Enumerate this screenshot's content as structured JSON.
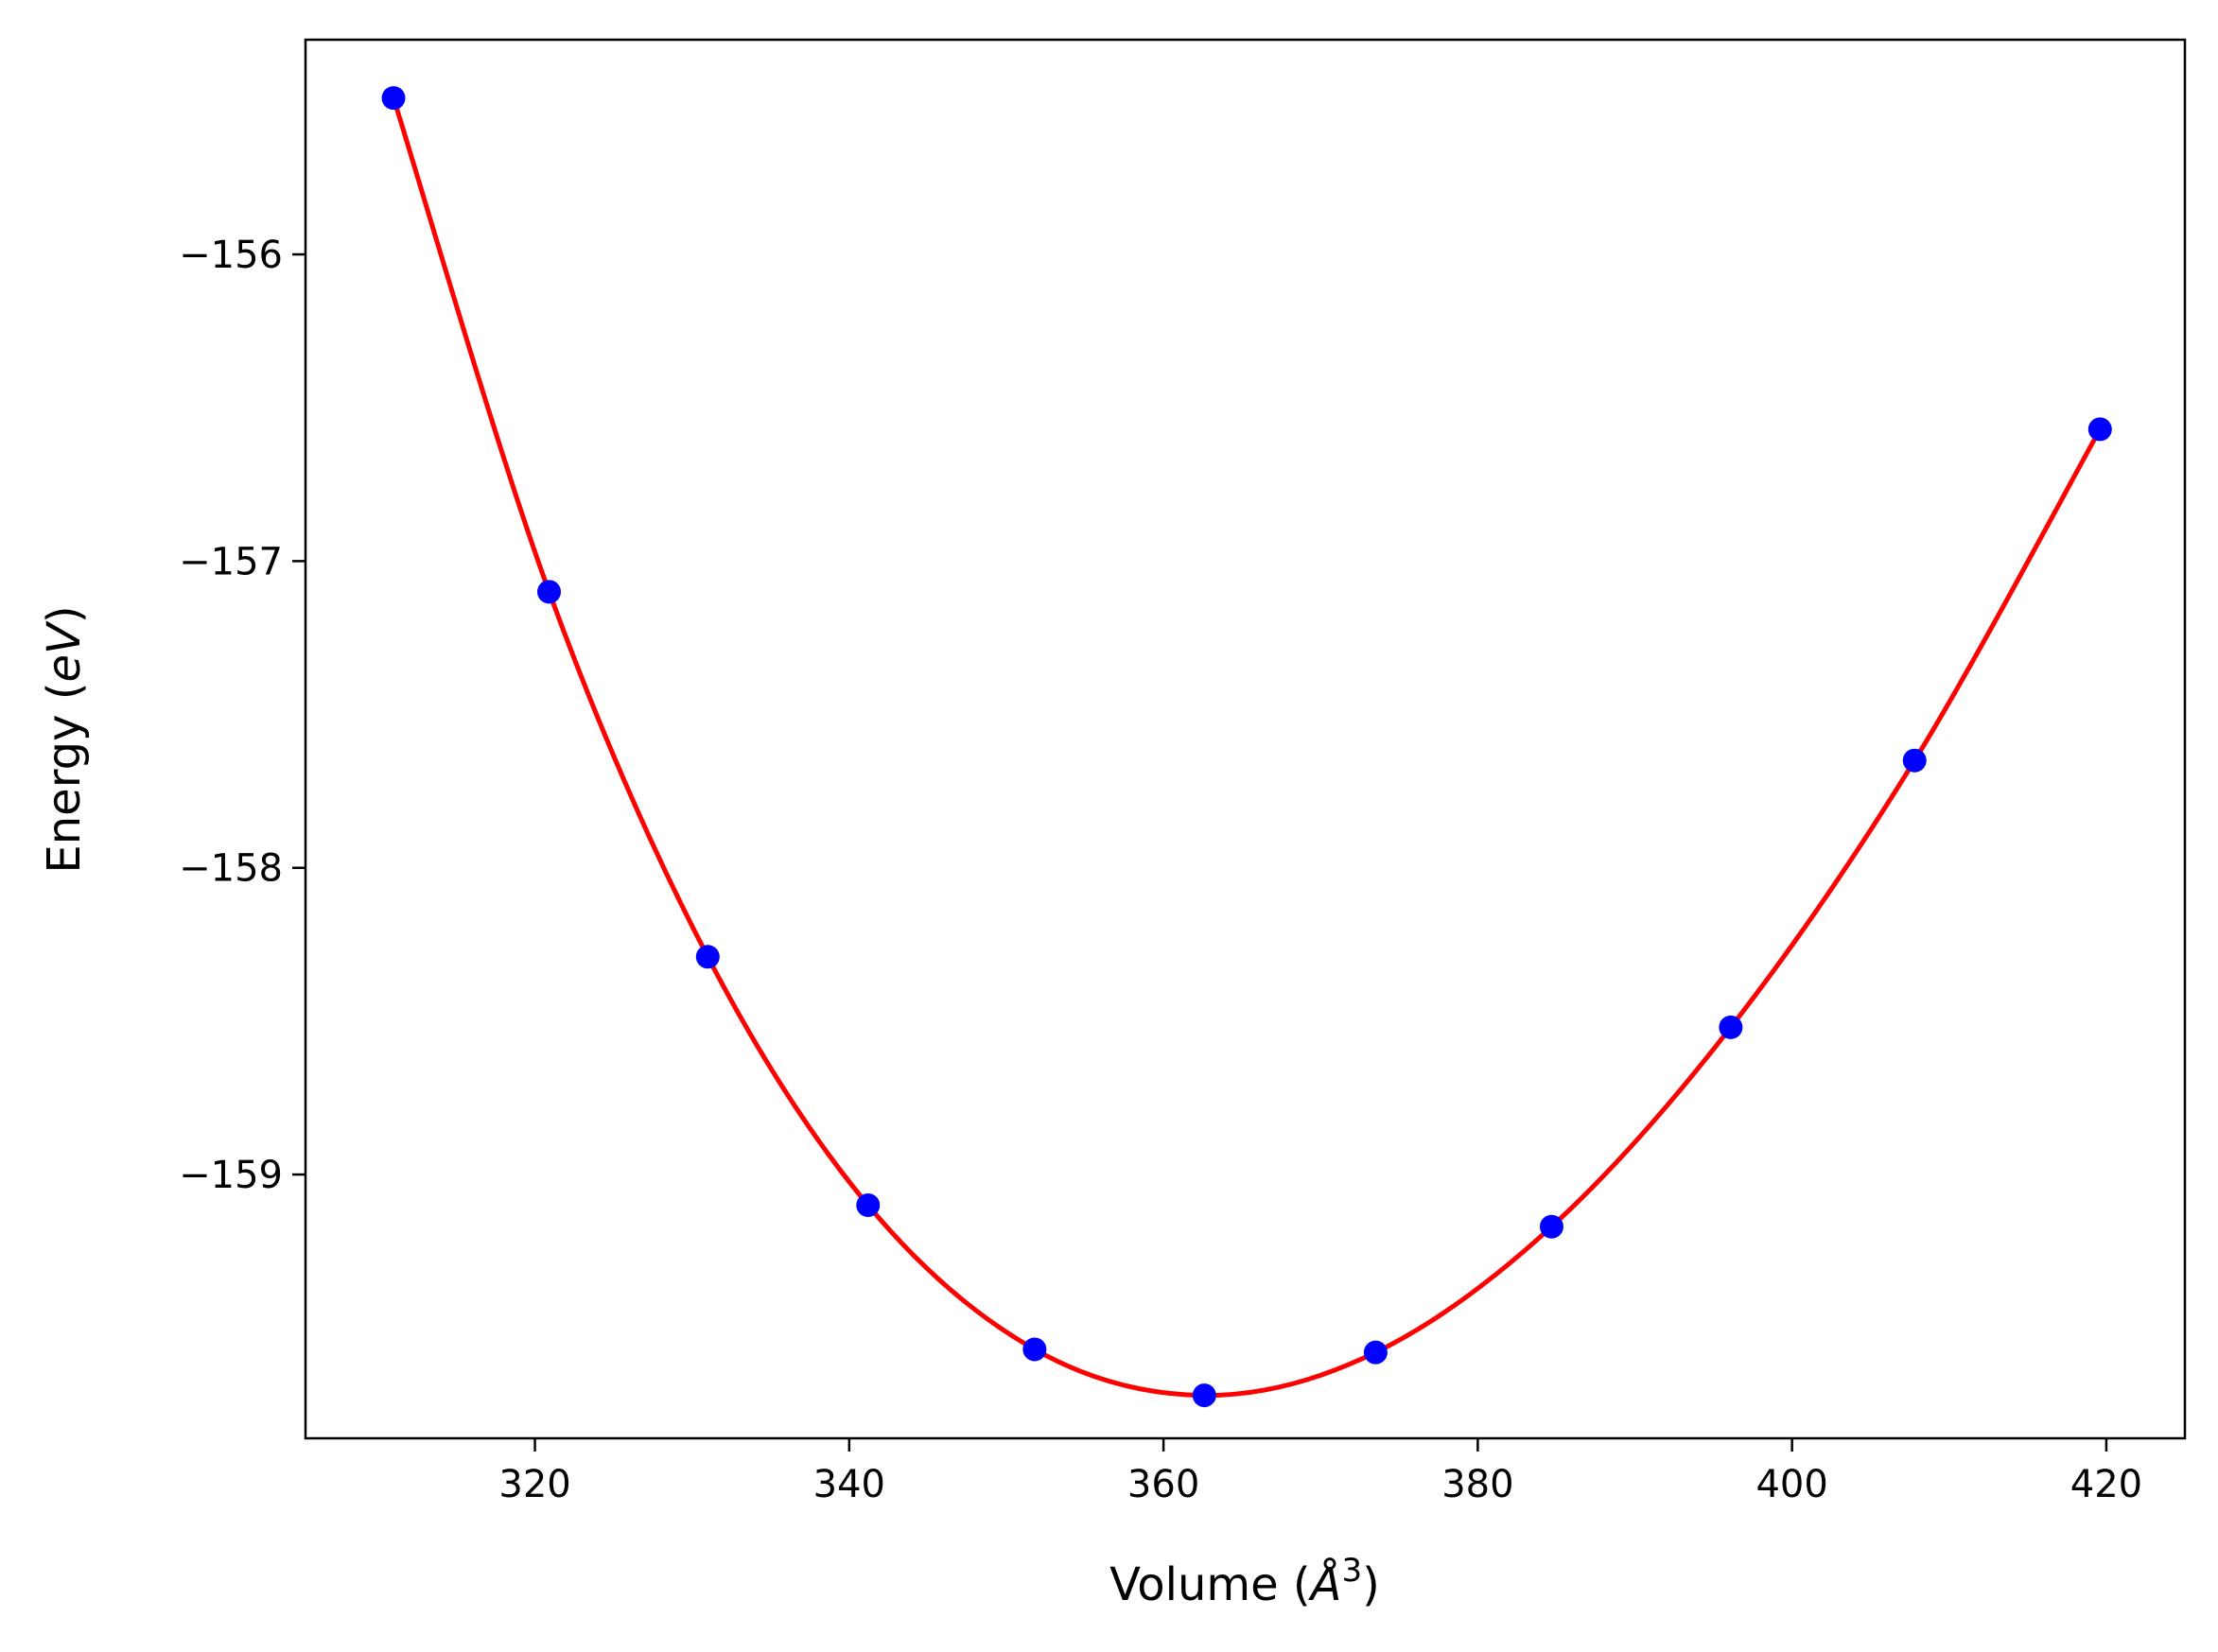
{
  "chart_data": {
    "type": "scatter",
    "title": "",
    "xlabel": "Volume (",
    "xlabel_italic": "Å",
    "xlabel_sup": "3",
    "xlabel_close": ")",
    "ylabel": "Energy (",
    "ylabel_italic": "eV",
    "ylabel_close": ")",
    "xlim": [
      305.4,
      425.0
    ],
    "ylim": [
      -159.86,
      -155.3
    ],
    "xticks": [
      320,
      340,
      360,
      380,
      400,
      420
    ],
    "yticks": [
      -156,
      -157,
      -158,
      -159
    ],
    "xtick_labels": [
      "320",
      "340",
      "360",
      "380",
      "400",
      "420"
    ],
    "ytick_labels": [
      "−156",
      "−157",
      "−158",
      "−159"
    ],
    "grid": false,
    "series": [
      {
        "kind": "points",
        "color": "#0000ff",
        "x": [
          311.0,
          320.9,
          331.0,
          341.2,
          351.8,
          362.6,
          373.5,
          384.7,
          396.1,
          407.8,
          419.6
        ],
        "y": [
          -155.49,
          -157.1,
          -158.29,
          -159.1,
          -159.57,
          -159.72,
          -159.58,
          -159.17,
          -158.52,
          -157.65,
          -156.57
        ]
      },
      {
        "kind": "fit",
        "color": "#ff0000",
        "x": [
          311.0,
          320.9,
          331.0,
          341.2,
          351.8,
          362.6,
          373.5,
          384.7,
          396.1,
          407.8,
          419.6
        ],
        "y": [
          -155.49,
          -157.1,
          -158.29,
          -159.1,
          -159.57,
          -159.72,
          -159.58,
          -159.17,
          -158.52,
          -157.65,
          -156.57
        ]
      }
    ]
  }
}
